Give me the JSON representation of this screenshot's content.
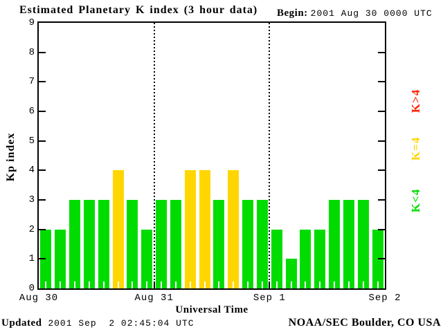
{
  "title": "Estimated Planetary K index (3 hour data)",
  "header": {
    "begin_label": "Begin:",
    "begin_value": "2001 Aug 30 0000 UTC"
  },
  "chart_data": {
    "type": "bar",
    "title": "Estimated Planetary K index (3 hour data)",
    "xlabel": "Universal Time",
    "ylabel": "Kp index",
    "ylim": [
      0,
      9
    ],
    "y_ticks": [
      0,
      1,
      2,
      3,
      4,
      5,
      6,
      7,
      8,
      9
    ],
    "x_tick_labels": [
      "Aug 30",
      "Aug 31",
      "Sep 1",
      "Sep 2"
    ],
    "hours_per_bar": 3,
    "grid": "dotted vertical lines at day boundaries",
    "series": [
      {
        "day": "Aug 30",
        "values": [
          2,
          2,
          3,
          3,
          3,
          4,
          3,
          2
        ]
      },
      {
        "day": "Aug 31",
        "values": [
          3,
          3,
          4,
          4,
          3,
          4,
          3,
          3
        ]
      },
      {
        "day": "Sep 1",
        "values": [
          2,
          1,
          2,
          2,
          3,
          3,
          3,
          2
        ]
      }
    ],
    "colors": {
      "k_below_4": "#00DC00",
      "k_equal_4": "#FFD600",
      "k_above_4": "#FF2200",
      "axis": "#000000",
      "background": "#FFFFFF"
    },
    "legend": [
      {
        "label": "K>4",
        "color": "#FF2200"
      },
      {
        "label": "K=4",
        "color": "#FFD600"
      },
      {
        "label": "K<4",
        "color": "#00DC00"
      }
    ],
    "legend_position": "right, rotated 90deg"
  },
  "footer": {
    "updated_label": "Updated",
    "updated_value": " 2001 Sep  2 02:45:04 UTC",
    "credit": "NOAA/SEC Boulder, CO USA"
  }
}
